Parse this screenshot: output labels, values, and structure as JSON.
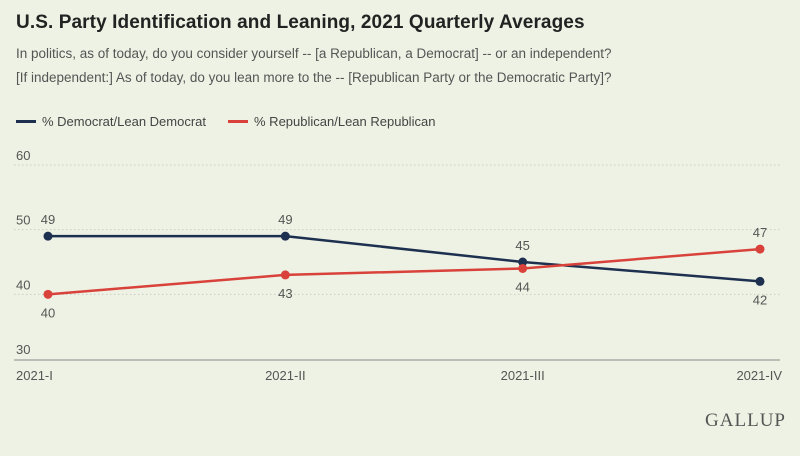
{
  "header": {
    "title": "U.S. Party Identification and Leaning, 2021 Quarterly Averages",
    "subtitle_line1": "In politics, as of today, do you consider yourself -- [a Republican, a Democrat] -- or an independent?",
    "subtitle_line2": "[If independent:] As of today, do you lean more to the -- [Republican Party or the Democratic Party]?"
  },
  "legend": {
    "dem_label": "% Democrat/Lean Democrat",
    "rep_label": "% Republican/Lean Republican"
  },
  "brand": "GALLUP",
  "colors": {
    "dem": "#1e3050",
    "rep": "#d9413b",
    "grid": "#c9ccc0",
    "axis": "#888"
  },
  "chart_data": {
    "type": "line",
    "title": "U.S. Party Identification and Leaning, 2021 Quarterly Averages",
    "categories": [
      "2021-I",
      "2021-II",
      "2021-III",
      "2021-IV"
    ],
    "series": [
      {
        "name": "% Democrat/Lean Democrat",
        "values": [
          49,
          49,
          45,
          42
        ],
        "color": "#1e3050"
      },
      {
        "name": "% Republican/Lean Republican",
        "values": [
          40,
          43,
          44,
          47
        ],
        "color": "#d9413b"
      }
    ],
    "ylim": [
      30,
      60
    ],
    "yticks": [
      30,
      40,
      50,
      60
    ],
    "grid": true,
    "legend": "top-left"
  }
}
